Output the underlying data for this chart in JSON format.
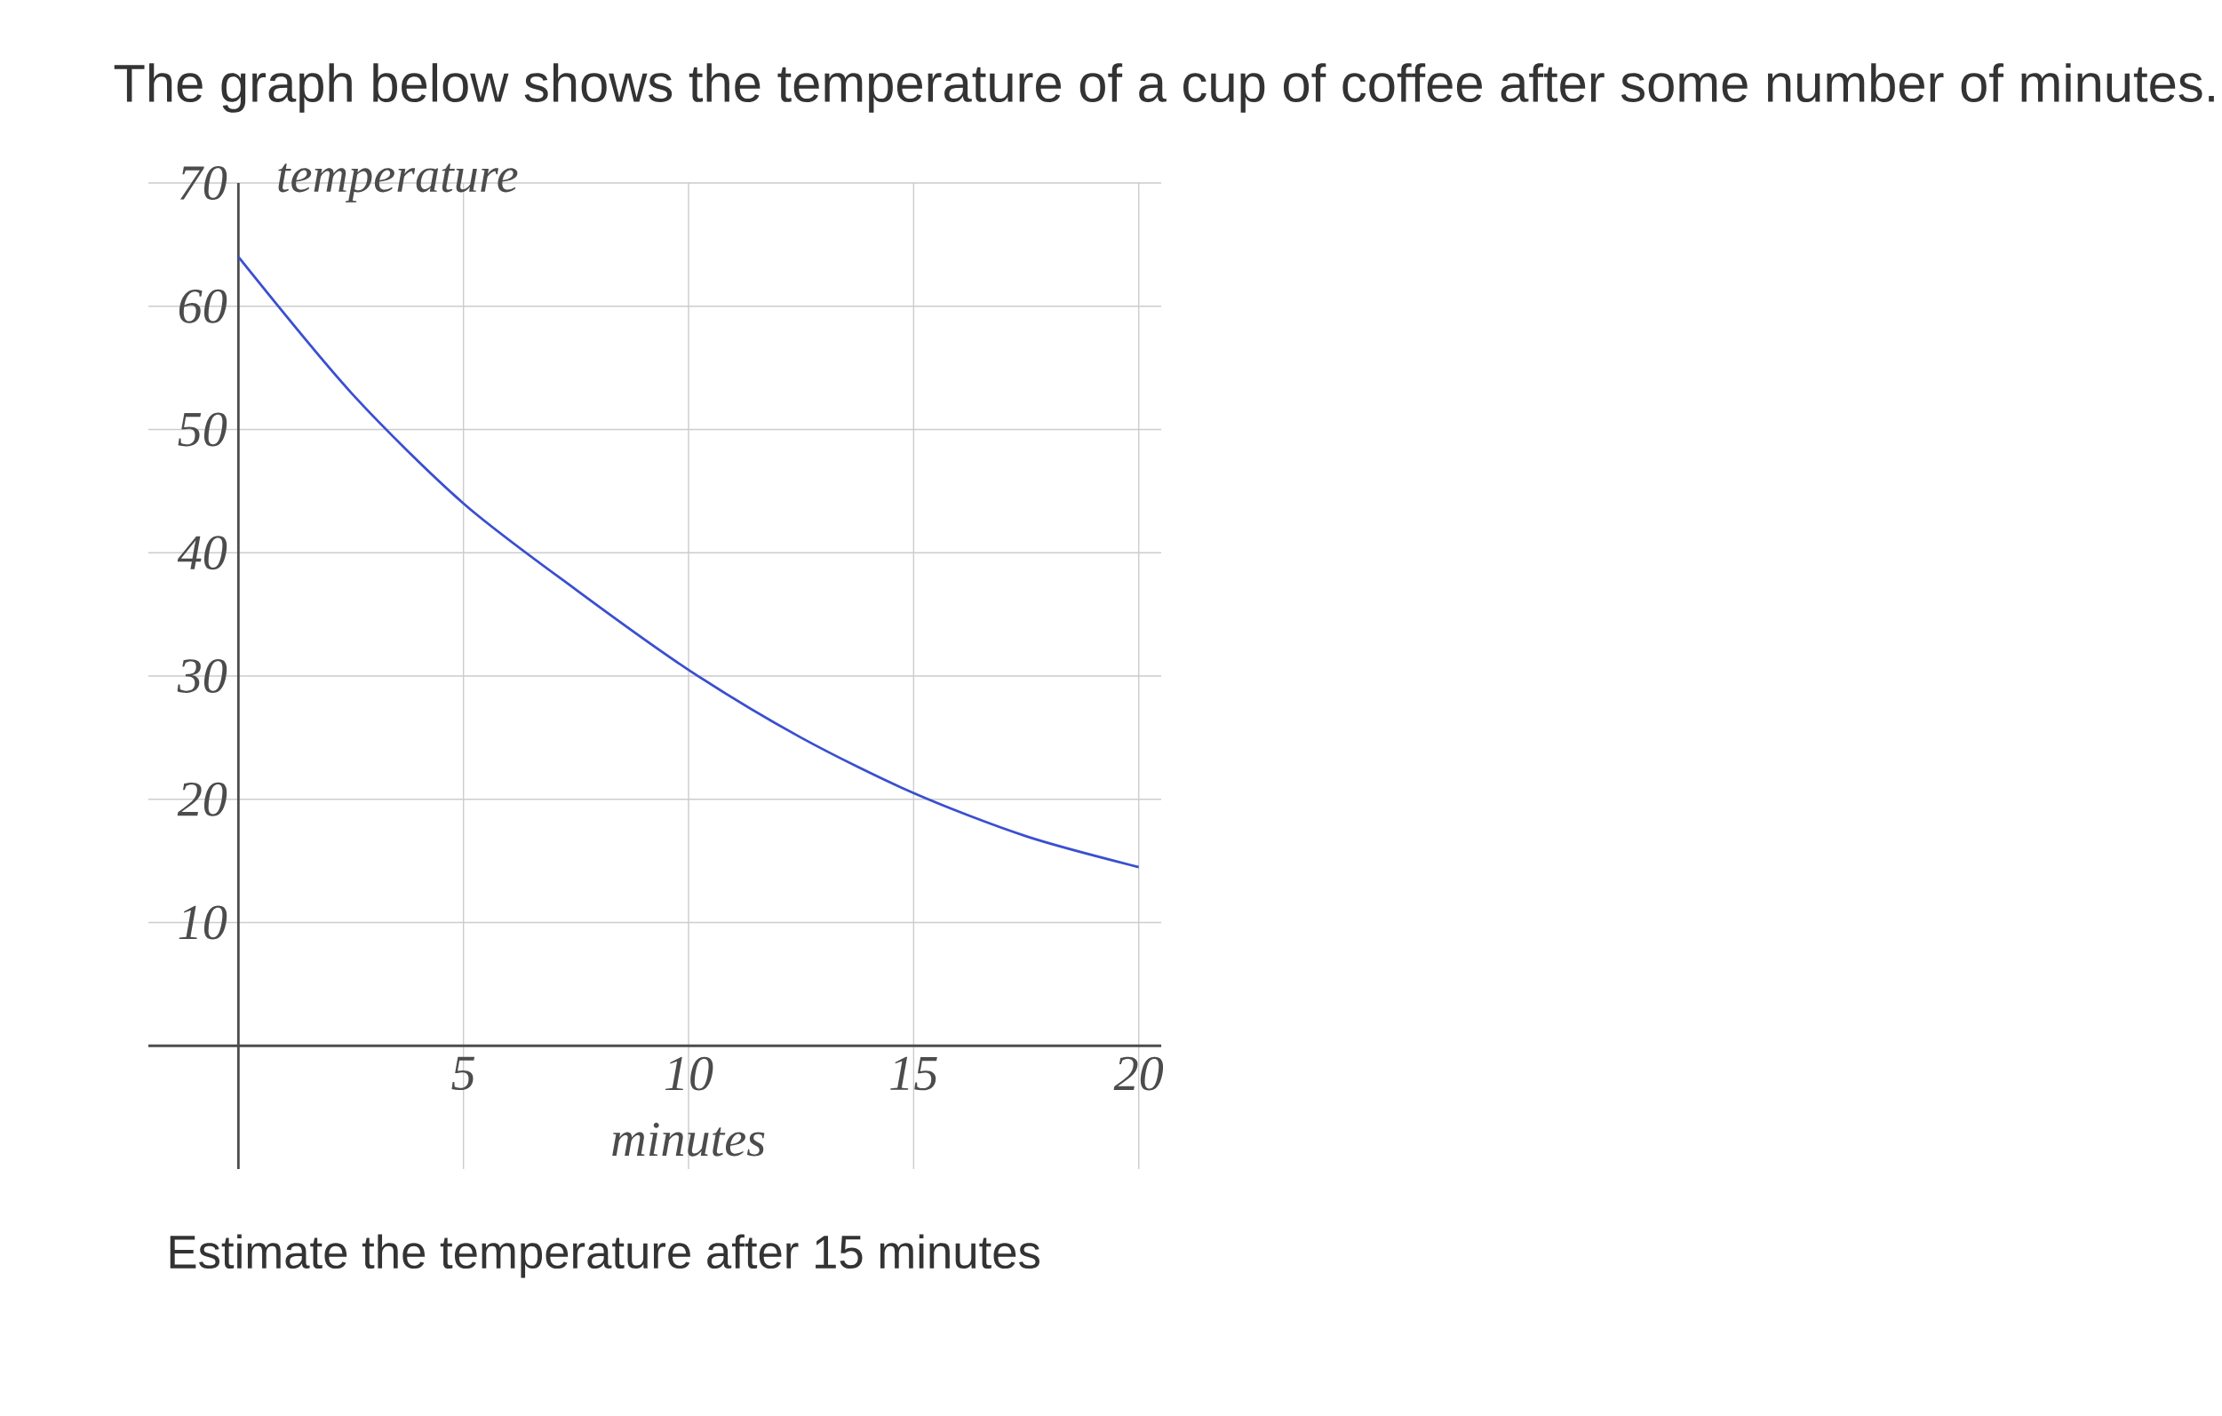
{
  "chart_data": {
    "type": "line",
    "title": "The graph below shows the temperature of a cup of coffee after some number of minutes.",
    "xlabel": "minutes",
    "ylabel": "temperature",
    "annotations": [
      "Estimate the temperature after 15 minutes"
    ],
    "x": [
      0,
      2.5,
      5,
      7.5,
      10,
      12.5,
      15,
      17.5,
      20
    ],
    "values": [
      64,
      53,
      44,
      37,
      30.5,
      25,
      20.5,
      17,
      14.5
    ],
    "color": "#3a4fd0",
    "xlim": [
      -2,
      20.5
    ],
    "ylim": [
      -10,
      70
    ],
    "xticks": [
      5,
      10,
      15,
      20
    ],
    "yticks": [
      10,
      20,
      30,
      40,
      50,
      60,
      70
    ],
    "grid": true
  }
}
